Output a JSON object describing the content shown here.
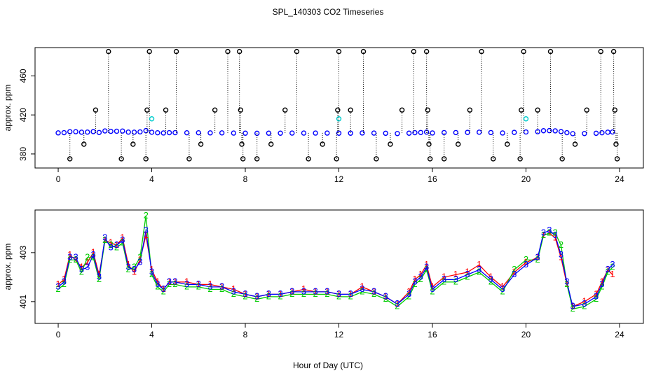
{
  "chart_data": [
    {
      "type": "scatter",
      "title": "SPL_140303  CO2 Timeseries",
      "ylabel": "approx. ppm",
      "xlim": [
        -0.99,
        25.02
      ],
      "ylim": [
        365.6,
        489
      ],
      "xticks": [
        0,
        4,
        8,
        12,
        16,
        20,
        24
      ],
      "yticks": [
        380,
        420,
        460
      ],
      "series": [
        {
          "color": "#0000ff",
          "marker": "circle",
          "x": [
            0,
            0.25,
            0.5,
            0.75,
            1,
            1.25,
            1.5,
            1.75,
            2,
            2.25,
            2.5,
            2.75,
            3,
            3.25,
            3.5,
            3.75,
            4,
            4.25,
            4.5,
            4.75,
            5,
            5.5,
            6,
            6.5,
            7,
            7.5,
            8,
            8.5,
            9,
            9.5,
            10,
            10.5,
            11,
            11.5,
            12,
            12.5,
            13,
            13.5,
            14,
            14.5,
            15,
            15.25,
            15.5,
            15.75,
            16,
            16.5,
            17,
            17.5,
            18,
            18.5,
            19,
            19.5,
            20,
            20.5,
            20.75,
            21,
            21.25,
            21.5,
            21.75,
            22,
            22.5,
            23,
            23.25,
            23.5,
            23.7
          ],
          "values": [
            401.6,
            401.8,
            402.8,
            402.8,
            402.3,
            402.4,
            402.9,
            402.0,
            403.6,
            403.2,
            403.3,
            403.5,
            402.4,
            402.3,
            402.6,
            403.9,
            402.2,
            401.7,
            401.5,
            401.8,
            401.8,
            401.7,
            401.7,
            401.6,
            401.6,
            401.4,
            401.3,
            401.2,
            401.3,
            401.3,
            401.4,
            401.4,
            401.4,
            401.4,
            401.3,
            401.3,
            401.5,
            401.4,
            401.2,
            400.9,
            401.3,
            401.8,
            402.0,
            402.4,
            401.5,
            401.9,
            401.9,
            402.1,
            402.3,
            401.9,
            401.5,
            402.1,
            402.5,
            402.8,
            403.8,
            403.9,
            403.7,
            402.9,
            401.8,
            400.8,
            400.9,
            401.2,
            401.7,
            402.3,
            402.5
          ]
        },
        {
          "color": "#000000",
          "marker": "stem",
          "x": [
            0.5,
            1.1,
            1.6,
            2.15,
            2.7,
            3.2,
            3.75,
            3.8,
            3.9,
            4.6,
            5.05,
            5.6,
            6.1,
            6.7,
            7.25,
            7.75,
            7.8,
            7.85,
            7.9,
            8.5,
            9.1,
            9.7,
            10.2,
            10.7,
            11.3,
            11.9,
            11.95,
            12.0,
            12.5,
            13.05,
            13.6,
            14.2,
            14.7,
            15.2,
            15.75,
            15.8,
            15.85,
            15.9,
            16.5,
            17.1,
            17.6,
            18.1,
            18.6,
            19.2,
            19.75,
            19.8,
            19.9,
            20.5,
            21.05,
            21.55,
            22.1,
            22.6,
            23.2,
            23.75,
            23.8,
            23.85,
            23.9
          ],
          "values": [
            375,
            390,
            425,
            485,
            375,
            390,
            375,
            425,
            485,
            425,
            485,
            375,
            390,
            425,
            485,
            485,
            425,
            390,
            375,
            375,
            390,
            425,
            485,
            375,
            390,
            375,
            425,
            485,
            425,
            485,
            375,
            390,
            425,
            485,
            485,
            425,
            390,
            375,
            375,
            390,
            425,
            485,
            375,
            390,
            375,
            425,
            485,
            425,
            485,
            375,
            390,
            425,
            485,
            485,
            425,
            390,
            375
          ]
        },
        {
          "color": "#00cccc",
          "marker": "circle",
          "x": [
            4.0,
            12.0,
            20.0
          ],
          "values": [
            416,
            416,
            416
          ]
        }
      ]
    },
    {
      "type": "line",
      "ylabel": "approx. ppm",
      "xlabel": "Hour of Day (UTC)",
      "xlim": [
        -0.99,
        25.02
      ],
      "ylim": [
        400.11,
        404.74
      ],
      "xticks": [
        0,
        4,
        8,
        12,
        16,
        20,
        24
      ],
      "yticks": [
        401,
        403
      ],
      "series": [
        {
          "color": "#ff0000",
          "marker": "1",
          "x": [
            0,
            0.25,
            0.5,
            0.75,
            1,
            1.25,
            1.5,
            1.75,
            2,
            2.25,
            2.5,
            2.75,
            3,
            3.25,
            3.5,
            3.75,
            4,
            4.25,
            4.5,
            4.75,
            5,
            5.5,
            6,
            6.5,
            7,
            7.5,
            8,
            8.5,
            9,
            9.5,
            10,
            10.5,
            11,
            11.5,
            12,
            12.5,
            13,
            13.5,
            14,
            14.5,
            15,
            15.25,
            15.5,
            15.75,
            16,
            16.5,
            17,
            17.5,
            18,
            18.5,
            19,
            19.5,
            20,
            20.5,
            20.75,
            21,
            21.25,
            21.5,
            21.75,
            22,
            22.5,
            23,
            23.25,
            23.5,
            23.7
          ],
          "values": [
            401.7,
            401.9,
            402.9,
            402.7,
            402.4,
            402.6,
            403.0,
            402.1,
            403.5,
            403.4,
            403.3,
            403.6,
            402.5,
            402.2,
            402.7,
            403.7,
            402.3,
            401.8,
            401.5,
            401.8,
            401.8,
            401.8,
            401.7,
            401.7,
            401.6,
            401.5,
            401.3,
            401.2,
            401.3,
            401.3,
            401.4,
            401.5,
            401.4,
            401.4,
            401.3,
            401.3,
            401.6,
            401.4,
            401.2,
            400.9,
            401.4,
            401.9,
            402.1,
            402.5,
            401.6,
            402.0,
            402.1,
            402.2,
            402.5,
            402.0,
            401.6,
            402.2,
            402.6,
            402.8,
            403.7,
            403.8,
            403.6,
            402.8,
            401.7,
            400.8,
            401.0,
            401.3,
            401.8,
            402.3,
            402.1
          ]
        },
        {
          "color": "#00cc00",
          "marker": "2",
          "x": [
            0,
            0.25,
            0.5,
            0.75,
            1,
            1.25,
            1.5,
            1.75,
            2,
            2.25,
            2.5,
            2.75,
            3,
            3.25,
            3.5,
            3.75,
            4,
            4.25,
            4.5,
            4.75,
            5,
            5.5,
            6,
            6.5,
            7,
            7.5,
            8,
            8.5,
            9,
            9.5,
            10,
            10.5,
            11,
            11.5,
            12,
            12.5,
            13,
            13.5,
            14,
            14.5,
            15,
            15.25,
            15.5,
            15.75,
            16,
            16.5,
            17,
            17.5,
            18,
            18.5,
            19,
            19.5,
            20,
            20.5,
            20.75,
            21,
            21.25,
            21.5,
            21.75,
            22,
            22.5,
            23,
            23.25,
            23.5,
            23.7
          ],
          "values": [
            401.5,
            401.7,
            402.7,
            402.7,
            402.2,
            402.8,
            402.8,
            401.9,
            403.5,
            403.3,
            403.2,
            403.4,
            402.3,
            402.4,
            402.8,
            404.5,
            402.1,
            401.6,
            401.4,
            401.7,
            401.7,
            401.6,
            401.6,
            401.5,
            401.5,
            401.3,
            401.2,
            401.1,
            401.2,
            401.2,
            401.3,
            401.3,
            401.3,
            401.3,
            401.2,
            401.2,
            401.4,
            401.3,
            401.1,
            400.8,
            401.2,
            401.7,
            401.9,
            402.3,
            401.4,
            401.8,
            401.8,
            402.0,
            402.2,
            401.8,
            401.4,
            402.3,
            402.7,
            402.7,
            403.7,
            403.8,
            403.8,
            403.3,
            401.7,
            400.7,
            400.8,
            401.1,
            401.6,
            402.2,
            402.4
          ]
        },
        {
          "color": "#0000ff",
          "marker": "3",
          "x": [
            0,
            0.25,
            0.5,
            0.75,
            1,
            1.25,
            1.5,
            1.75,
            2,
            2.25,
            2.5,
            2.75,
            3,
            3.25,
            3.5,
            3.75,
            4,
            4.25,
            4.5,
            4.75,
            5,
            5.5,
            6,
            6.5,
            7,
            7.5,
            8,
            8.5,
            9,
            9.5,
            10,
            10.5,
            11,
            11.5,
            12,
            12.5,
            13,
            13.5,
            14,
            14.5,
            15,
            15.25,
            15.5,
            15.75,
            16,
            16.5,
            17,
            17.5,
            18,
            18.5,
            19,
            19.5,
            20,
            20.5,
            20.75,
            21,
            21.25,
            21.5,
            21.75,
            22,
            22.5,
            23,
            23.25,
            23.5,
            23.7
          ],
          "values": [
            401.6,
            401.8,
            402.8,
            402.8,
            402.3,
            402.4,
            402.9,
            402.0,
            403.6,
            403.2,
            403.3,
            403.5,
            402.4,
            402.3,
            402.6,
            403.9,
            402.2,
            401.7,
            401.5,
            401.8,
            401.8,
            401.7,
            401.7,
            401.6,
            401.6,
            401.4,
            401.3,
            401.2,
            401.3,
            401.3,
            401.4,
            401.4,
            401.4,
            401.4,
            401.3,
            401.3,
            401.5,
            401.4,
            401.2,
            400.9,
            401.3,
            401.8,
            402.0,
            402.4,
            401.5,
            401.9,
            401.9,
            402.1,
            402.3,
            401.9,
            401.5,
            402.1,
            402.5,
            402.8,
            403.8,
            403.9,
            403.7,
            402.9,
            401.8,
            400.8,
            400.9,
            401.2,
            401.7,
            402.3,
            402.5
          ]
        }
      ]
    }
  ]
}
